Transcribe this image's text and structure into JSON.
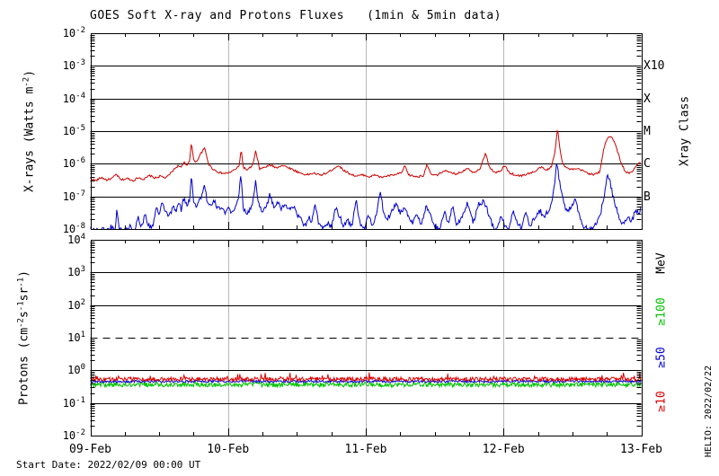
{
  "header": {
    "title": "GOES Soft X-ray and Protons Fluxes   (1min & 5min data)"
  },
  "footer": {
    "start_date": "Start Date: 2022/02/09 00:00 UT",
    "credit": "HELIO: 2022/02/22"
  },
  "colors": {
    "xray_red": "#cc0000",
    "xray_blue": "#0000cc",
    "proton_ge10": "#dd0000",
    "proton_ge50": "#0000cc",
    "proton_ge100": "#00c300",
    "grid_day": "#b8b8b8",
    "axis": "#000000"
  },
  "chart_data": [
    {
      "type": "line",
      "panel": "xray",
      "title": "GOES Soft X-ray and Protons Fluxes (1min & 5min data)",
      "ylabel": "X-rays (Watts m^-2)",
      "ylabel_segments": [
        [
          "X-rays (Watts m",
          0
        ],
        [
          "-2",
          1
        ],
        [
          ")",
          0
        ]
      ],
      "ytick_exponents": [
        -2,
        -3,
        -4,
        -5,
        -6,
        -7,
        -8
      ],
      "ylim_log10": [
        -8,
        -2
      ],
      "xlim_days": [
        0,
        4
      ],
      "xticklabels": [
        "09-Feb",
        "10-Feb",
        "11-Feb",
        "12-Feb",
        "13-Feb"
      ],
      "grid": "decade-horizontal, day-vertical",
      "right_axis": {
        "title": "Xray Class",
        "labels": [
          {
            "text": "X10",
            "log10": -3
          },
          {
            "text": "X",
            "log10": -4
          },
          {
            "text": "M",
            "log10": -5
          },
          {
            "text": "C",
            "log10": -6
          },
          {
            "text": "B",
            "log10": -7
          }
        ]
      },
      "series": [
        {
          "name": "xray-red-trace",
          "color": "#cc0000",
          "noise_dex": 0.03,
          "points_day_log10": [
            0.0,
            -6.45,
            0.04,
            -6.52,
            0.08,
            -6.42,
            0.12,
            -6.5,
            0.16,
            -6.44,
            0.19,
            -6.32,
            0.22,
            -6.5,
            0.27,
            -6.45,
            0.31,
            -6.52,
            0.35,
            -6.42,
            0.39,
            -6.48,
            0.43,
            -6.36,
            0.47,
            -6.44,
            0.51,
            -6.38,
            0.55,
            -6.44,
            0.58,
            -6.3,
            0.61,
            -6.16,
            0.64,
            -6.05,
            0.66,
            -6.12,
            0.68,
            -5.95,
            0.7,
            -6.05,
            0.72,
            -5.9,
            0.734,
            -5.35,
            0.75,
            -5.88,
            0.77,
            -5.95,
            0.8,
            -5.7,
            0.83,
            -5.52,
            0.86,
            -6.02,
            0.89,
            -6.16,
            0.93,
            -6.26,
            0.97,
            -6.3,
            1.01,
            -6.27,
            1.05,
            -6.18,
            1.08,
            -6.08,
            1.095,
            -5.55,
            1.11,
            -6.1,
            1.14,
            -6.2,
            1.18,
            -6.04,
            1.2,
            -5.62,
            1.23,
            -6.16,
            1.27,
            -6.1,
            1.31,
            -6.04,
            1.35,
            -6.12,
            1.39,
            -6.05,
            1.43,
            -6.1,
            1.47,
            -6.18,
            1.52,
            -6.28,
            1.57,
            -6.34,
            1.62,
            -6.29,
            1.67,
            -6.35,
            1.72,
            -6.28,
            1.77,
            -6.14,
            1.8,
            -6.05,
            1.84,
            -6.2,
            1.88,
            -6.3,
            1.93,
            -6.38,
            1.98,
            -6.34,
            2.03,
            -6.4,
            2.07,
            -6.34,
            2.11,
            -6.42,
            2.16,
            -6.37,
            2.21,
            -6.34,
            2.26,
            -6.28,
            2.285,
            -6.05,
            2.31,
            -6.34,
            2.37,
            -6.4,
            2.42,
            -6.36,
            2.444,
            -6.0,
            2.47,
            -6.32,
            2.52,
            -6.36,
            2.57,
            -6.2,
            2.61,
            -6.28,
            2.66,
            -6.31,
            2.7,
            -6.24,
            2.74,
            -6.12,
            2.78,
            -6.28,
            2.83,
            -6.14,
            2.868,
            -5.68,
            2.9,
            -6.12,
            2.94,
            -6.28,
            2.98,
            -6.22,
            3.01,
            -6.05,
            3.04,
            -6.27,
            3.08,
            -6.34,
            3.13,
            -6.37,
            3.18,
            -6.3,
            3.23,
            -6.24,
            3.27,
            -6.1,
            3.31,
            -6.2,
            3.35,
            -6.08,
            3.375,
            -5.6,
            3.392,
            -4.9,
            3.41,
            -5.55,
            3.43,
            -6.0,
            3.46,
            -6.14,
            3.5,
            -6.18,
            3.54,
            -6.16,
            3.58,
            -6.22,
            3.62,
            -6.3,
            3.66,
            -6.33,
            3.7,
            -6.25,
            3.725,
            -5.6,
            3.745,
            -5.28,
            3.76,
            -5.18,
            3.78,
            -5.17,
            3.8,
            -5.28,
            3.82,
            -5.52,
            3.85,
            -5.92,
            3.88,
            -6.22,
            3.91,
            -6.3,
            3.94,
            -6.22,
            3.96,
            -6.1,
            3.98,
            -5.95,
            4.0,
            -6.02
          ]
        },
        {
          "name": "xray-blue-trace",
          "color": "#0000cc",
          "noise_dex": 0.08,
          "points_day_log10": [
            0.0,
            -7.95,
            0.04,
            -8.05,
            0.08,
            -8.0,
            0.12,
            -8.05,
            0.15,
            -7.92,
            0.18,
            -8.05,
            0.193,
            -7.35,
            0.21,
            -8.02,
            0.25,
            -8.05,
            0.29,
            -7.9,
            0.32,
            -8.05,
            0.35,
            -7.62,
            0.37,
            -7.96,
            0.4,
            -7.52,
            0.42,
            -7.9,
            0.45,
            -7.95,
            0.48,
            -7.32,
            0.5,
            -7.6,
            0.52,
            -7.22,
            0.55,
            -7.5,
            0.58,
            -7.58,
            0.6,
            -7.3,
            0.62,
            -7.48,
            0.64,
            -7.2,
            0.66,
            -7.4,
            0.68,
            -7.02,
            0.7,
            -7.3,
            0.72,
            -7.1,
            0.734,
            -6.3,
            0.75,
            -7.12,
            0.77,
            -7.3,
            0.79,
            -7.14,
            0.81,
            -6.95,
            0.83,
            -6.62,
            0.85,
            -7.2,
            0.88,
            -7.32,
            0.9,
            -7.15,
            0.93,
            -7.4,
            0.95,
            -7.3,
            0.98,
            -7.5,
            1.0,
            -7.4,
            1.03,
            -7.52,
            1.05,
            -7.3,
            1.07,
            -7.18,
            1.095,
            -6.35,
            1.11,
            -7.3,
            1.13,
            -7.55,
            1.16,
            -7.4,
            1.18,
            -7.2,
            1.2,
            -6.55,
            1.22,
            -7.2,
            1.25,
            -7.45,
            1.28,
            -7.3,
            1.3,
            -6.95,
            1.33,
            -7.3,
            1.36,
            -7.2,
            1.39,
            -7.4,
            1.41,
            -7.25,
            1.44,
            -7.35,
            1.47,
            -7.3,
            1.5,
            -7.52,
            1.53,
            -7.72,
            1.56,
            -7.9,
            1.59,
            -7.6,
            1.61,
            -7.82,
            1.63,
            -7.15,
            1.66,
            -7.9,
            1.69,
            -8.0,
            1.72,
            -7.8,
            1.75,
            -7.95,
            1.78,
            -7.35,
            1.81,
            -7.62,
            1.84,
            -7.9,
            1.87,
            -7.72,
            1.9,
            -7.95,
            1.93,
            -7.05,
            1.955,
            -7.8,
            1.99,
            -8.0,
            2.02,
            -7.6,
            2.05,
            -7.9,
            2.08,
            -7.5,
            2.105,
            -6.85,
            2.13,
            -7.52,
            2.16,
            -7.7,
            2.19,
            -7.4,
            2.22,
            -7.22,
            2.25,
            -7.5,
            2.28,
            -7.35,
            2.31,
            -7.6,
            2.34,
            -7.8,
            2.37,
            -7.5,
            2.4,
            -7.9,
            2.44,
            -7.32,
            2.47,
            -7.6,
            2.5,
            -7.9,
            2.54,
            -8.0,
            2.57,
            -7.5,
            2.6,
            -7.8,
            2.63,
            -7.3,
            2.66,
            -7.9,
            2.7,
            -7.6,
            2.74,
            -7.2,
            2.78,
            -7.8,
            2.82,
            -7.22,
            2.86,
            -7.15,
            2.89,
            -7.5,
            2.92,
            -7.9,
            2.95,
            -8.0,
            2.98,
            -7.6,
            3.01,
            -7.9,
            3.04,
            -8.0,
            3.07,
            -7.4,
            3.1,
            -7.8,
            3.13,
            -7.95,
            3.16,
            -7.5,
            3.19,
            -7.9,
            3.22,
            -7.7,
            3.26,
            -7.4,
            3.29,
            -7.6,
            3.32,
            -7.5,
            3.35,
            -7.2,
            3.37,
            -6.7,
            3.387,
            -5.9,
            3.405,
            -6.5,
            3.43,
            -7.1,
            3.46,
            -7.5,
            3.49,
            -7.3,
            3.52,
            -7.05,
            3.55,
            -7.6,
            3.58,
            -7.9,
            3.62,
            -8.02,
            3.66,
            -7.9,
            3.7,
            -7.6,
            3.73,
            -7.0,
            3.755,
            -6.35,
            3.775,
            -6.6,
            3.8,
            -7.1,
            3.83,
            -7.5,
            3.86,
            -7.9,
            3.9,
            -7.6,
            3.93,
            -7.8,
            3.96,
            -7.4,
            3.98,
            -7.55,
            4.0,
            -7.3
          ]
        }
      ]
    },
    {
      "type": "line",
      "panel": "protons",
      "ylabel": "Protons (cm^-2 s^-1 sr^-1)",
      "ylabel_segments": [
        [
          "Protons (cm",
          0
        ],
        [
          "-2",
          1
        ],
        [
          "s",
          0
        ],
        [
          "-1",
          1
        ],
        [
          "sr",
          0
        ],
        [
          "-1",
          1
        ],
        [
          ")",
          0
        ]
      ],
      "ytick_exponents": [
        4,
        3,
        2,
        1,
        0,
        -1,
        -2
      ],
      "ylim_log10": [
        -2,
        4
      ],
      "xlim_days": [
        0,
        4
      ],
      "xticklabels": [
        "09-Feb",
        "10-Feb",
        "11-Feb",
        "12-Feb",
        "13-Feb"
      ],
      "threshold_line_log10": 1,
      "right_axis": {
        "title": "MeV",
        "labels": [
          {
            "text": "≥100",
            "color": "#00c300"
          },
          {
            "text": "≥50",
            "color": "#0000cc"
          },
          {
            "text": "≥10",
            "color": "#dd0000"
          }
        ]
      },
      "series": [
        {
          "name": "protons-ge100-MeV",
          "color": "#00c300",
          "baseline_log10": -0.44,
          "noise_dex": 0.07,
          "spike_dex": 0,
          "spike_prob": 0
        },
        {
          "name": "protons-ge50-MeV",
          "color": "#0000cc",
          "baseline_log10": -0.34,
          "noise_dex": 0.035,
          "spike_dex": 0,
          "spike_prob": 0
        },
        {
          "name": "protons-ge10-MeV",
          "color": "#dd0000",
          "baseline_log10": -0.27,
          "noise_dex": 0.06,
          "spike_dex": 0.18,
          "spike_prob": 0.04
        }
      ]
    }
  ]
}
